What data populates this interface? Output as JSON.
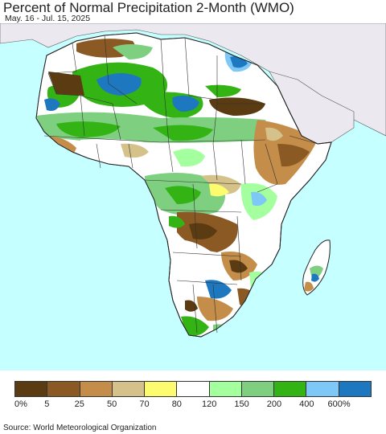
{
  "header": {
    "title": "Percent of Normal Precipitation 2-Month (WMO)",
    "subtitle": "May. 16 - Jul. 15, 2025"
  },
  "map": {
    "region": "Africa",
    "ocean_color": "#c6ffff",
    "land_outside_color": "#ece8f0"
  },
  "legend": {
    "colors": [
      "#5a3b12",
      "#8b5a24",
      "#c48e4a",
      "#d4c28a",
      "#fcfc6e",
      "#ffffff",
      "#a4ff9e",
      "#7ed080",
      "#33b314",
      "#7ec8f8",
      "#1e78c0"
    ],
    "labels": [
      "0%",
      "5",
      "25",
      "50",
      "70",
      "80",
      "120",
      "150",
      "200",
      "400",
      "600%"
    ]
  },
  "footer": {
    "source": "Source: World Meteorological Organization"
  }
}
